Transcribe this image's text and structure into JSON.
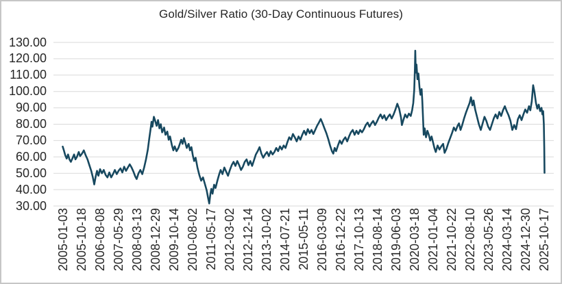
{
  "chart_data": {
    "type": "line",
    "title": "Gold/Silver Ratio (30-Day Continuous Futures)",
    "xlabel": "",
    "ylabel": "",
    "ylim": [
      30,
      130
    ],
    "grid": true,
    "legend": "none",
    "y_tick_labels": [
      "130.00",
      "120.00",
      "110.00",
      "100.00",
      "90.00",
      "80.00",
      "70.00",
      "60.00",
      "50.00",
      "40.00",
      "30.00"
    ],
    "x_tick_labels": [
      "2005-01-03",
      "2005-10-18",
      "2006-08-08",
      "2007-05-29",
      "2008-03-13",
      "2008-12-29",
      "2009-10-14",
      "2010-08-02",
      "2011-05-17",
      "2012-03-02",
      "2012-12-14",
      "2013-10-02",
      "2014-07-21",
      "2015-05-11",
      "2016-03-09",
      "2016-12-22",
      "2017-10-13",
      "2018-08-14",
      "2019-06-03",
      "2020-03-18",
      "2021-01-04",
      "2021-10-22",
      "2022-08-10",
      "2023-05-26",
      "2024-03-14",
      "2024-12-30",
      "2025-10-17"
    ],
    "series": [
      {
        "color": "#17485f",
        "points": [
          [
            2005.01,
            66.3
          ],
          [
            2005.06,
            64.0
          ],
          [
            2005.12,
            61.0
          ],
          [
            2005.18,
            59.0
          ],
          [
            2005.24,
            61.5
          ],
          [
            2005.3,
            58.5
          ],
          [
            2005.36,
            57.0
          ],
          [
            2005.44,
            59.5
          ],
          [
            2005.5,
            61.5
          ],
          [
            2005.56,
            58.5
          ],
          [
            2005.62,
            60.0
          ],
          [
            2005.7,
            63.0
          ],
          [
            2005.76,
            60.5
          ],
          [
            2005.84,
            62.0
          ],
          [
            2005.92,
            64.0
          ],
          [
            2006.0,
            61.0
          ],
          [
            2006.08,
            58.5
          ],
          [
            2006.16,
            55.0
          ],
          [
            2006.24,
            51.5
          ],
          [
            2006.31,
            47.5
          ],
          [
            2006.37,
            43.2
          ],
          [
            2006.43,
            48.0
          ],
          [
            2006.49,
            51.5
          ],
          [
            2006.55,
            48.5
          ],
          [
            2006.62,
            52.5
          ],
          [
            2006.7,
            50.0
          ],
          [
            2006.78,
            52.0
          ],
          [
            2006.86,
            49.0
          ],
          [
            2006.94,
            47.5
          ],
          [
            2007.02,
            50.5
          ],
          [
            2007.1,
            47.5
          ],
          [
            2007.18,
            49.5
          ],
          [
            2007.26,
            52.0
          ],
          [
            2007.34,
            49.5
          ],
          [
            2007.42,
            51.5
          ],
          [
            2007.5,
            53.0
          ],
          [
            2007.58,
            50.5
          ],
          [
            2007.66,
            54.0
          ],
          [
            2007.74,
            51.5
          ],
          [
            2007.82,
            53.5
          ],
          [
            2007.9,
            55.5
          ],
          [
            2007.98,
            53.5
          ],
          [
            2008.06,
            51.0
          ],
          [
            2008.14,
            48.0
          ],
          [
            2008.2,
            46.5
          ],
          [
            2008.28,
            50.0
          ],
          [
            2008.36,
            52.0
          ],
          [
            2008.44,
            49.5
          ],
          [
            2008.52,
            53.5
          ],
          [
            2008.6,
            58.5
          ],
          [
            2008.68,
            64.5
          ],
          [
            2008.74,
            71.0
          ],
          [
            2008.8,
            77.0
          ],
          [
            2008.84,
            81.5
          ],
          [
            2008.88,
            78.5
          ],
          [
            2008.94,
            84.5
          ],
          [
            2009.0,
            82.0
          ],
          [
            2009.06,
            79.0
          ],
          [
            2009.12,
            82.5
          ],
          [
            2009.18,
            77.5
          ],
          [
            2009.24,
            80.0
          ],
          [
            2009.3,
            75.0
          ],
          [
            2009.38,
            78.0
          ],
          [
            2009.44,
            73.5
          ],
          [
            2009.52,
            75.5
          ],
          [
            2009.58,
            70.5
          ],
          [
            2009.64,
            72.5
          ],
          [
            2009.72,
            67.0
          ],
          [
            2009.78,
            64.0
          ],
          [
            2009.84,
            66.5
          ],
          [
            2009.92,
            63.5
          ],
          [
            2010.0,
            65.5
          ],
          [
            2010.06,
            68.0
          ],
          [
            2010.12,
            70.5
          ],
          [
            2010.18,
            68.0
          ],
          [
            2010.24,
            71.5
          ],
          [
            2010.3,
            68.5
          ],
          [
            2010.36,
            65.5
          ],
          [
            2010.44,
            68.0
          ],
          [
            2010.5,
            64.0
          ],
          [
            2010.56,
            66.0
          ],
          [
            2010.62,
            61.0
          ],
          [
            2010.68,
            57.5
          ],
          [
            2010.74,
            59.5
          ],
          [
            2010.82,
            53.5
          ],
          [
            2010.9,
            49.0
          ],
          [
            2010.98,
            45.5
          ],
          [
            2011.06,
            47.5
          ],
          [
            2011.14,
            43.5
          ],
          [
            2011.22,
            39.5
          ],
          [
            2011.28,
            35.0
          ],
          [
            2011.33,
            31.5
          ],
          [
            2011.38,
            37.5
          ],
          [
            2011.42,
            40.5
          ],
          [
            2011.47,
            37.5
          ],
          [
            2011.54,
            43.0
          ],
          [
            2011.6,
            41.0
          ],
          [
            2011.68,
            45.5
          ],
          [
            2011.76,
            49.5
          ],
          [
            2011.82,
            52.0
          ],
          [
            2011.9,
            49.5
          ],
          [
            2011.98,
            53.5
          ],
          [
            2012.06,
            51.0
          ],
          [
            2012.14,
            48.5
          ],
          [
            2012.22,
            52.0
          ],
          [
            2012.3,
            55.0
          ],
          [
            2012.38,
            57.0
          ],
          [
            2012.46,
            54.5
          ],
          [
            2012.54,
            57.5
          ],
          [
            2012.62,
            55.0
          ],
          [
            2012.7,
            52.0
          ],
          [
            2012.78,
            54.0
          ],
          [
            2012.86,
            57.0
          ],
          [
            2012.94,
            58.5
          ],
          [
            2013.02,
            55.0
          ],
          [
            2013.1,
            57.5
          ],
          [
            2013.18,
            54.5
          ],
          [
            2013.26,
            58.0
          ],
          [
            2013.34,
            61.5
          ],
          [
            2013.42,
            63.5
          ],
          [
            2013.5,
            66.0
          ],
          [
            2013.58,
            62.0
          ],
          [
            2013.66,
            59.5
          ],
          [
            2013.74,
            61.5
          ],
          [
            2013.82,
            63.0
          ],
          [
            2013.9,
            60.5
          ],
          [
            2013.98,
            63.5
          ],
          [
            2014.06,
            61.5
          ],
          [
            2014.14,
            63.0
          ],
          [
            2014.22,
            65.5
          ],
          [
            2014.3,
            63.5
          ],
          [
            2014.38,
            66.5
          ],
          [
            2014.46,
            64.5
          ],
          [
            2014.54,
            67.0
          ],
          [
            2014.62,
            65.5
          ],
          [
            2014.7,
            69.0
          ],
          [
            2014.78,
            72.0
          ],
          [
            2014.86,
            70.5
          ],
          [
            2014.94,
            74.0
          ],
          [
            2015.02,
            72.0
          ],
          [
            2015.1,
            69.5
          ],
          [
            2015.18,
            72.5
          ],
          [
            2015.26,
            70.5
          ],
          [
            2015.34,
            73.5
          ],
          [
            2015.42,
            76.0
          ],
          [
            2015.5,
            73.5
          ],
          [
            2015.58,
            77.0
          ],
          [
            2015.66,
            74.5
          ],
          [
            2015.74,
            76.5
          ],
          [
            2015.82,
            74.0
          ],
          [
            2015.9,
            76.5
          ],
          [
            2015.98,
            79.0
          ],
          [
            2016.06,
            81.0
          ],
          [
            2016.14,
            83.2
          ],
          [
            2016.22,
            80.5
          ],
          [
            2016.3,
            77.5
          ],
          [
            2016.38,
            74.5
          ],
          [
            2016.46,
            71.0
          ],
          [
            2016.54,
            67.0
          ],
          [
            2016.62,
            63.5
          ],
          [
            2016.68,
            62.0
          ],
          [
            2016.74,
            65.5
          ],
          [
            2016.8,
            63.5
          ],
          [
            2016.88,
            67.0
          ],
          [
            2016.96,
            70.0
          ],
          [
            2017.04,
            68.0
          ],
          [
            2017.12,
            70.5
          ],
          [
            2017.2,
            72.0
          ],
          [
            2017.28,
            69.5
          ],
          [
            2017.36,
            72.5
          ],
          [
            2017.44,
            75.0
          ],
          [
            2017.52,
            76.5
          ],
          [
            2017.6,
            73.5
          ],
          [
            2017.68,
            76.0
          ],
          [
            2017.76,
            74.0
          ],
          [
            2017.84,
            76.5
          ],
          [
            2017.92,
            75.0
          ],
          [
            2018.0,
            77.0
          ],
          [
            2018.08,
            79.5
          ],
          [
            2018.16,
            81.0
          ],
          [
            2018.24,
            78.5
          ],
          [
            2018.32,
            80.5
          ],
          [
            2018.4,
            82.0
          ],
          [
            2018.48,
            79.5
          ],
          [
            2018.56,
            81.5
          ],
          [
            2018.64,
            84.0
          ],
          [
            2018.72,
            86.0
          ],
          [
            2018.8,
            83.5
          ],
          [
            2018.88,
            85.5
          ],
          [
            2018.96,
            82.5
          ],
          [
            2019.04,
            84.5
          ],
          [
            2019.12,
            86.0
          ],
          [
            2019.2,
            83.5
          ],
          [
            2019.28,
            86.0
          ],
          [
            2019.36,
            89.0
          ],
          [
            2019.44,
            92.5
          ],
          [
            2019.52,
            89.5
          ],
          [
            2019.6,
            84.0
          ],
          [
            2019.64,
            79.5
          ],
          [
            2019.7,
            82.5
          ],
          [
            2019.78,
            86.0
          ],
          [
            2019.86,
            84.0
          ],
          [
            2019.94,
            86.5
          ],
          [
            2020.02,
            85.0
          ],
          [
            2020.08,
            88.5
          ],
          [
            2020.13,
            93.0
          ],
          [
            2020.17,
            101.0
          ],
          [
            2020.2,
            114.0
          ],
          [
            2020.215,
            125.0
          ],
          [
            2020.24,
            111.5
          ],
          [
            2020.27,
            116.5
          ],
          [
            2020.31,
            107.5
          ],
          [
            2020.35,
            111.0
          ],
          [
            2020.4,
            102.5
          ],
          [
            2020.44,
            98.0
          ],
          [
            2020.49,
            101.5
          ],
          [
            2020.52,
            94.0
          ],
          [
            2020.55,
            84.0
          ],
          [
            2020.58,
            73.5
          ],
          [
            2020.62,
            77.5
          ],
          [
            2020.68,
            72.0
          ],
          [
            2020.74,
            76.0
          ],
          [
            2020.8,
            73.5
          ],
          [
            2020.86,
            70.0
          ],
          [
            2020.92,
            72.5
          ],
          [
            2020.98,
            69.0
          ],
          [
            2021.04,
            65.5
          ],
          [
            2021.1,
            63.0
          ],
          [
            2021.18,
            67.0
          ],
          [
            2021.26,
            64.5
          ],
          [
            2021.34,
            66.5
          ],
          [
            2021.42,
            68.0
          ],
          [
            2021.48,
            62.5
          ],
          [
            2021.56,
            65.0
          ],
          [
            2021.64,
            68.5
          ],
          [
            2021.72,
            71.5
          ],
          [
            2021.8,
            74.5
          ],
          [
            2021.88,
            78.0
          ],
          [
            2021.96,
            76.0
          ],
          [
            2022.04,
            79.0
          ],
          [
            2022.1,
            80.5
          ],
          [
            2022.17,
            76.5
          ],
          [
            2022.24,
            79.5
          ],
          [
            2022.32,
            83.5
          ],
          [
            2022.4,
            87.0
          ],
          [
            2022.48,
            90.0
          ],
          [
            2022.56,
            93.0
          ],
          [
            2022.62,
            96.5
          ],
          [
            2022.68,
            91.5
          ],
          [
            2022.73,
            94.5
          ],
          [
            2022.8,
            89.0
          ],
          [
            2022.88,
            84.5
          ],
          [
            2022.96,
            80.0
          ],
          [
            2023.04,
            76.5
          ],
          [
            2023.12,
            80.5
          ],
          [
            2023.2,
            84.5
          ],
          [
            2023.28,
            82.0
          ],
          [
            2023.36,
            78.5
          ],
          [
            2023.44,
            76.5
          ],
          [
            2023.52,
            80.0
          ],
          [
            2023.6,
            83.5
          ],
          [
            2023.68,
            86.0
          ],
          [
            2023.76,
            83.5
          ],
          [
            2023.84,
            87.5
          ],
          [
            2023.92,
            85.0
          ],
          [
            2024.0,
            88.5
          ],
          [
            2024.08,
            91.0
          ],
          [
            2024.16,
            88.0
          ],
          [
            2024.24,
            85.5
          ],
          [
            2024.32,
            82.0
          ],
          [
            2024.4,
            76.5
          ],
          [
            2024.48,
            79.5
          ],
          [
            2024.56,
            77.0
          ],
          [
            2024.64,
            83.0
          ],
          [
            2024.72,
            85.5
          ],
          [
            2024.8,
            82.5
          ],
          [
            2024.88,
            86.0
          ],
          [
            2024.96,
            89.0
          ],
          [
            2025.04,
            87.0
          ],
          [
            2025.12,
            91.0
          ],
          [
            2025.18,
            88.5
          ],
          [
            2025.24,
            94.0
          ],
          [
            2025.3,
            103.8
          ],
          [
            2025.36,
            99.5
          ],
          [
            2025.42,
            93.0
          ],
          [
            2025.48,
            89.5
          ],
          [
            2025.54,
            92.0
          ],
          [
            2025.6,
            88.0
          ],
          [
            2025.66,
            90.0
          ],
          [
            2025.7,
            86.0
          ],
          [
            2025.73,
            88.0
          ],
          [
            2025.76,
            80.0
          ],
          [
            2025.78,
            66.0
          ],
          [
            2025.79,
            50.3
          ]
        ]
      }
    ]
  },
  "colors": {
    "line": "#17485f",
    "grid": "#d9d9d9",
    "text": "#262626",
    "frame_border": "#c6c6c6",
    "background": "#ffffff"
  }
}
